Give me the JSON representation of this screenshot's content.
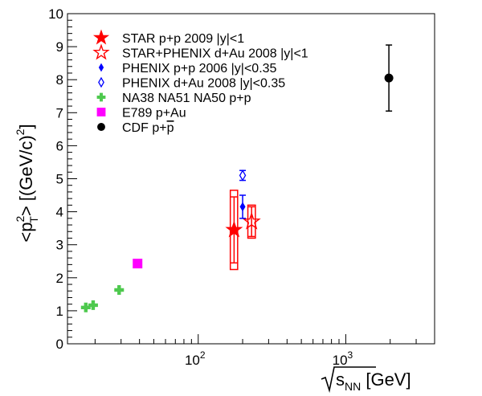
{
  "chart_data": {
    "type": "scatter",
    "x_scale": "log",
    "xlim": [
      13,
      4000
    ],
    "ylim": [
      0,
      10
    ],
    "x_ticks": [
      {
        "value": 100,
        "label": "10",
        "exp": "2"
      },
      {
        "value": 1000,
        "label": "10",
        "exp": "3"
      }
    ],
    "y_ticks": [
      0,
      1,
      2,
      3,
      4,
      5,
      6,
      7,
      8,
      9,
      10
    ],
    "xlabel": {
      "pre": "s",
      "sub": "NN",
      "unit": " [GeV]"
    },
    "ylabel": {
      "open": "<p",
      "sup": "2",
      "sub": "T",
      "close": "> [(GeV/c)",
      "close_sup": "2",
      "end": "]"
    },
    "legend": {
      "position": "top-left",
      "entries": [
        {
          "label": "STAR p+p 2009 |y|<1",
          "marker": "star-filled",
          "color": "#ff0000"
        },
        {
          "label": "STAR+PHENIX d+Au 2008 |y|<1",
          "marker": "star-open",
          "color": "#ff0000"
        },
        {
          "label": "PHENIX p+p 2006 |y|<0.35",
          "marker": "diamond-filled",
          "color": "#0000ff"
        },
        {
          "label": "PHENIX d+Au 2008 |y|<0.35",
          "marker": "diamond-open",
          "color": "#0000ff"
        },
        {
          "label": "NA38 NA51 NA50 p+p",
          "marker": "cross",
          "color": "#4ec94e"
        },
        {
          "label": "E789 p+Au",
          "marker": "square",
          "color": "#ff00ff"
        },
        {
          "label": "CDF p+",
          "bar_text": "p",
          "marker": "circle",
          "color": "#000000"
        }
      ]
    },
    "series": [
      {
        "name": "STAR p+p 2009 |y|<1",
        "marker": "star-filled",
        "color": "#ff0000",
        "points": [
          {
            "x": 175,
            "y": 3.45,
            "yerr": 1.0,
            "sys_xw": [
              165,
              185
            ],
            "sys_y": [
              2.25,
              4.65
            ]
          }
        ]
      },
      {
        "name": "STAR+PHENIX d+Au 2008 |y|<1",
        "marker": "star-open",
        "color": "#ff0000",
        "points": [
          {
            "x": 230,
            "y": 3.7,
            "yerr": 0.45,
            "sys_xw": [
              217,
              244
            ],
            "sys_y": [
              3.2,
              4.2
            ]
          }
        ]
      },
      {
        "name": "PHENIX p+p 2006 |y|<0.35",
        "marker": "diamond-filled",
        "color": "#0000ff",
        "points": [
          {
            "x": 200,
            "y": 4.15,
            "yerr": 0.35
          }
        ]
      },
      {
        "name": "PHENIX d+Au 2008 |y|<0.35",
        "marker": "diamond-open",
        "color": "#0000ff",
        "points": [
          {
            "x": 200,
            "y": 5.1,
            "yerr": 0.15
          }
        ]
      },
      {
        "name": "NA38 NA51 NA50 p+p",
        "marker": "cross",
        "color": "#4ec94e",
        "points": [
          {
            "x": 17.3,
            "y": 1.1
          },
          {
            "x": 19.4,
            "y": 1.17
          },
          {
            "x": 29.1,
            "y": 1.63
          }
        ]
      },
      {
        "name": "E789 p+Au",
        "marker": "square",
        "color": "#ff00ff",
        "points": [
          {
            "x": 38.8,
            "y": 2.43
          }
        ]
      },
      {
        "name": "CDF p+pbar",
        "marker": "circle",
        "color": "#000000",
        "points": [
          {
            "x": 1960,
            "y": 8.05,
            "yerr": 1.0
          }
        ]
      }
    ]
  }
}
